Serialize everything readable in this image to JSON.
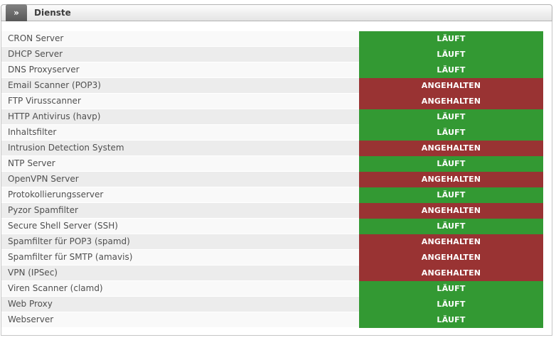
{
  "header": {
    "collapse_icon": "»",
    "title": "Dienste"
  },
  "status_colors": {
    "LÄUFT": "#339933",
    "ANGEHALTEN": "#993333"
  },
  "services": [
    {
      "name": "CRON Server",
      "status": "LÄUFT"
    },
    {
      "name": "DHCP Server",
      "status": "LÄUFT"
    },
    {
      "name": "DNS Proxyserver",
      "status": "LÄUFT"
    },
    {
      "name": "Email Scanner (POP3)",
      "status": "ANGEHALTEN"
    },
    {
      "name": "FTP Virusscanner",
      "status": "ANGEHALTEN"
    },
    {
      "name": "HTTP Antivirus (havp)",
      "status": "LÄUFT"
    },
    {
      "name": "Inhaltsfilter",
      "status": "LÄUFT"
    },
    {
      "name": "Intrusion Detection System",
      "status": "ANGEHALTEN"
    },
    {
      "name": "NTP Server",
      "status": "LÄUFT"
    },
    {
      "name": "OpenVPN Server",
      "status": "ANGEHALTEN"
    },
    {
      "name": "Protokollierungsserver",
      "status": "LÄUFT"
    },
    {
      "name": "Pyzor Spamfilter",
      "status": "ANGEHALTEN"
    },
    {
      "name": "Secure Shell Server (SSH)",
      "status": "LÄUFT"
    },
    {
      "name": "Spamfilter für POP3 (spamd)",
      "status": "ANGEHALTEN"
    },
    {
      "name": "Spamfilter für SMTP (amavis)",
      "status": "ANGEHALTEN"
    },
    {
      "name": "VPN (IPSec)",
      "status": "ANGEHALTEN"
    },
    {
      "name": "Viren Scanner (clamd)",
      "status": "LÄUFT"
    },
    {
      "name": "Web Proxy",
      "status": "LÄUFT"
    },
    {
      "name": "Webserver",
      "status": "LÄUFT"
    }
  ]
}
